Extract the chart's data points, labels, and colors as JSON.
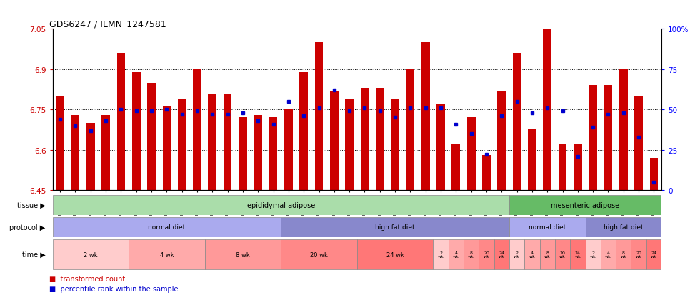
{
  "title": "GDS6247 / ILMN_1247581",
  "samples": [
    "GSM971546",
    "GSM971547",
    "GSM971548",
    "GSM971549",
    "GSM971550",
    "GSM971551",
    "GSM971552",
    "GSM971553",
    "GSM971554",
    "GSM971555",
    "GSM971556",
    "GSM971557",
    "GSM971558",
    "GSM971559",
    "GSM971560",
    "GSM971561",
    "GSM971562",
    "GSM971563",
    "GSM971564",
    "GSM971565",
    "GSM971566",
    "GSM971567",
    "GSM971568",
    "GSM971569",
    "GSM971570",
    "GSM971571",
    "GSM971572",
    "GSM971573",
    "GSM971574",
    "GSM971575",
    "GSM971576",
    "GSM971577",
    "GSM971578",
    "GSM971579",
    "GSM971580",
    "GSM971581",
    "GSM971582",
    "GSM971583",
    "GSM971584",
    "GSM971585"
  ],
  "bar_values": [
    6.8,
    6.73,
    6.7,
    6.73,
    6.96,
    6.89,
    6.85,
    6.76,
    6.79,
    6.9,
    6.81,
    6.81,
    6.72,
    6.73,
    6.72,
    6.75,
    6.89,
    7.0,
    6.82,
    6.79,
    6.83,
    6.83,
    6.79,
    6.9,
    7.0,
    6.77,
    6.62,
    6.72,
    6.58,
    6.82,
    6.96,
    6.68,
    7.05,
    6.62,
    6.62,
    6.84,
    6.84,
    6.9,
    6.8,
    6.57
  ],
  "percentile_values": [
    44,
    40,
    37,
    43,
    50,
    49,
    49,
    50,
    47,
    49,
    47,
    47,
    48,
    43,
    41,
    55,
    46,
    51,
    62,
    49,
    51,
    49,
    45,
    51,
    51,
    51,
    41,
    35,
    22,
    46,
    55,
    48,
    51,
    49,
    21,
    39,
    47,
    48,
    33,
    5
  ],
  "ymin": 6.45,
  "ymax": 7.05,
  "grid_lines": [
    6.6,
    6.75,
    6.9
  ],
  "bar_color": "#CC0000",
  "blue_color": "#0000CC",
  "tissue_groups": [
    {
      "label": "epididymal adipose",
      "start": 0,
      "end": 29,
      "color": "#AADDAA"
    },
    {
      "label": "mesenteric adipose",
      "start": 30,
      "end": 39,
      "color": "#66BB66"
    }
  ],
  "protocol_groups": [
    {
      "label": "normal diet",
      "start": 0,
      "end": 14,
      "color": "#AAAAEE"
    },
    {
      "label": "high fat diet",
      "start": 15,
      "end": 29,
      "color": "#8888CC"
    },
    {
      "label": "normal diet",
      "start": 30,
      "end": 34,
      "color": "#AAAAEE"
    },
    {
      "label": "high fat diet",
      "start": 35,
      "end": 39,
      "color": "#8888CC"
    }
  ],
  "time_groups": [
    {
      "label": "2 wk",
      "start": 0,
      "end": 4,
      "color": "#FFCCCC"
    },
    {
      "label": "4 wk",
      "start": 5,
      "end": 9,
      "color": "#FFAAAA"
    },
    {
      "label": "8 wk",
      "start": 10,
      "end": 14,
      "color": "#FF9999"
    },
    {
      "label": "20 wk",
      "start": 15,
      "end": 19,
      "color": "#FF8888"
    },
    {
      "label": "24 wk",
      "start": 20,
      "end": 24,
      "color": "#FF7777"
    },
    {
      "label": "2 wk",
      "start": 25,
      "end": 25,
      "color": "#FFCCCC"
    },
    {
      "label": "4 wk",
      "start": 26,
      "end": 26,
      "color": "#FFAAAA"
    },
    {
      "label": "8 wk",
      "start": 27,
      "end": 27,
      "color": "#FF9999"
    },
    {
      "label": "20 wk",
      "start": 28,
      "end": 28,
      "color": "#FF8888"
    },
    {
      "label": "24 wk",
      "start": 29,
      "end": 29,
      "color": "#FF7777"
    },
    {
      "label": "2 wk",
      "start": 30,
      "end": 30,
      "color": "#FFCCCC"
    },
    {
      "label": "4 wk",
      "start": 31,
      "end": 31,
      "color": "#FFAAAA"
    },
    {
      "label": "8 wk",
      "start": 32,
      "end": 32,
      "color": "#FF9999"
    },
    {
      "label": "20 wk",
      "start": 33,
      "end": 33,
      "color": "#FF8888"
    },
    {
      "label": "24 wk",
      "start": 34,
      "end": 34,
      "color": "#FF7777"
    },
    {
      "label": "2 wk",
      "start": 35,
      "end": 35,
      "color": "#FFCCCC"
    },
    {
      "label": "4 wk",
      "start": 36,
      "end": 36,
      "color": "#FFAAAA"
    },
    {
      "label": "8 wk",
      "start": 37,
      "end": 37,
      "color": "#FF9999"
    },
    {
      "label": "20 wk",
      "start": 38,
      "end": 38,
      "color": "#FF8888"
    },
    {
      "label": "24 wk",
      "start": 39,
      "end": 39,
      "color": "#FF7777"
    }
  ],
  "legend_bar_color": "#CC0000",
  "legend_blue_color": "#0000CC",
  "legend_label_bar": "transformed count",
  "legend_label_blue": "percentile rank within the sample"
}
